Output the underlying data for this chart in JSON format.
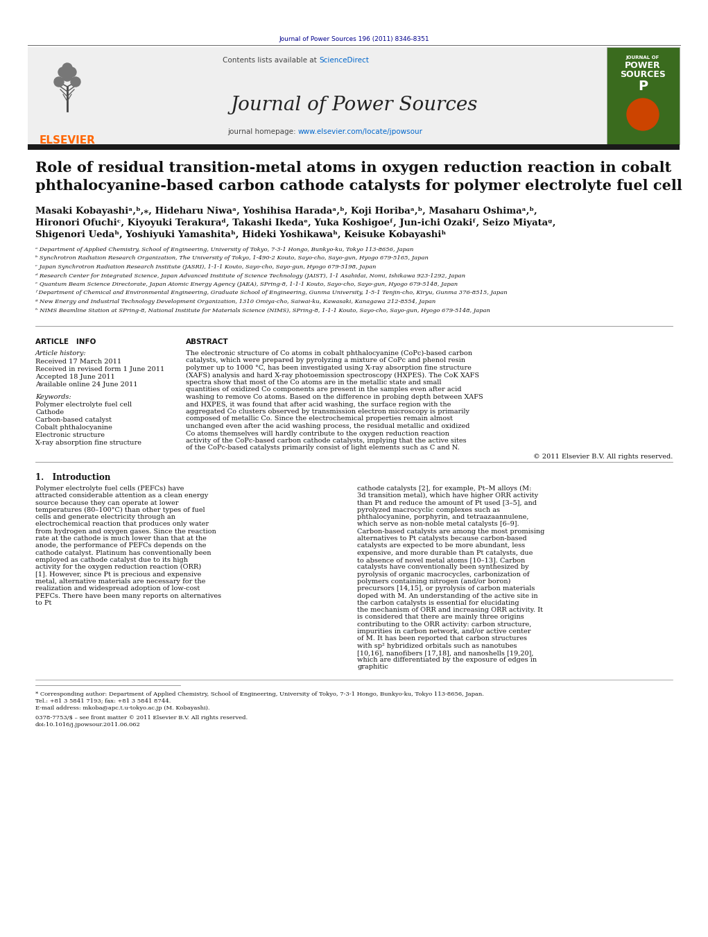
{
  "journal_ref": "Journal of Power Sources 196 (2011) 8346-8351",
  "journal_ref_color": "#00008B",
  "sciencedirect_color": "#0066CC",
  "homepage_url_color": "#0066CC",
  "elsevier_color": "#FF6600",
  "header_bg": "#EFEFEF",
  "dark_bar_color": "#1a1a1a",
  "title": "Role of residual transition-metal atoms in oxygen reduction reaction in cobalt\nphthalocyanine-based carbon cathode catalysts for polymer electrolyte fuel cell",
  "authors_line1": "Masaki Kobayashiᵃ,ᵇ,⁎, Hideharu Niwaᵃ, Yoshihisa Haradaᵃ,ᵇ, Koji Horibaᵃ,ᵇ, Masaharu Oshimaᵃ,ᵇ,",
  "authors_line2": "Hironori Ofuchiᶜ, Kiyoyuki Terakuraᵈ, Takashi Ikedaᵉ, Yuka Koshigoeᶠ, Jun-ichi Ozakiᶠ, Seizo Miyataᵍ,",
  "authors_line3": "Shigenori Uedaʰ, Yoshiyuki Yamashitaʰ, Hideki Yoshikawaʰ, Keisuke Kobayashiʰ",
  "affiliations": [
    "ᵃ Department of Applied Chemistry, School of Engineering, University of Tokyo, 7-3-1 Hongo, Bunkyo-ku, Tokyo 113-8656, Japan",
    "ᵇ Synchrotron Radiation Research Organization, The University of Tokyo, 1-490-2 Kouto, Sayo-cho, Sayo-gun, Hyogo 679-5165, Japan",
    "ᶜ Japan Synchrotron Radiation Research Institute (JASRI), 1-1-1 Kouto, Sayo-cho, Sayo-gun, Hyogo 679-5198, Japan",
    "ᵈ Research Center for Integrated Science, Japan Advanced Institute of Science Technology (JAIST), 1-1 Asahidai, Nomi, Ishikawa 923-1292, Japan",
    "ᵉ Quantum Beam Science Directorate, Japan Atomic Energy Agency (JAEA), SPring-8, 1-1-1 Kouto, Sayo-cho, Sayo-gun, Hyogo 679-5148, Japan",
    "ᶠ Department of Chemical and Environmental Engineering, Graduate School of Engineering, Gunma University, 1-5-1 Tenjin-cho, Kiryu, Gunma 376-8515, Japan",
    "ᵍ New Energy and Industrial Technology Development Organization, 1310 Omiya-cho, Saiwai-ku, Kawasaki, Kanagawa 212-8554, Japan",
    "ʰ NIMS Beamline Station at SPring-8, National Institute for Materials Science (NIMS), SPring-8, 1-1-1 Kouto, Sayo-cho, Sayo-gun, Hyogo 679-5148, Japan"
  ],
  "article_info_label": "ARTICLE   INFO",
  "abstract_label": "ABSTRACT",
  "article_history_label": "Article history:",
  "received_text": "Received 17 March 2011",
  "revised_text": "Received in revised form 1 June 2011",
  "accepted_text": "Accepted 18 June 2011",
  "available_text": "Available online 24 June 2011",
  "keywords_label": "Keywords:",
  "keywords": [
    "Polymer electrolyte fuel cell",
    "Cathode",
    "Carbon-based catalyst",
    "Cobalt phthalocyanine",
    "Electronic structure",
    "X-ray absorption fine structure"
  ],
  "abstract_text": "The electronic structure of Co atoms in cobalt phthalocyanine (CoPc)-based carbon catalysts, which were prepared by pyrolyzing a mixture of CoPc and phenol resin polymer up to 1000 °C, has been investigated using X-ray absorption fine structure (XAFS) analysis and hard X-ray photoemission spectroscopy (HXPES). The CoK XAFS spectra show that most of the Co atoms are in the metallic state and small quantities of oxidized Co components are present in the samples even after acid washing to remove Co atoms. Based on the difference in probing depth between XAFS and HXPES, it was found that after acid washing, the surface region with the aggregated Co clusters observed by transmission electron microscopy is primarily composed of metallic Co. Since the electrochemical properties remain almost unchanged even after the acid washing process, the residual metallic and oxidized Co atoms themselves will hardly contribute to the oxygen reduction reaction activity of the CoPc-based carbon cathode catalysts, implying that the active sites of the CoPc-based catalysts primarily consist of light elements such as C and N.",
  "copyright_text": "© 2011 Elsevier B.V. All rights reserved.",
  "section1_title": "1.   Introduction",
  "intro_col1": "Polymer electrolyte fuel cells (PEFCs) have attracted considerable attention as a clean energy source because they can operate at lower temperatures (80–100°C) than other types of fuel cells and generate electricity through an electrochemical reaction that produces only water from hydrogen and oxygen gases. Since the reaction rate at the cathode is much lower than that at the anode, the performance of PEFCs depends on the cathode catalyst. Platinum has conventionally been employed as cathode catalyst due to its high activity for the oxygen reduction reaction (ORR) [1]. However, since Pt is precious and expensive metal, alternative materials are necessary for the realization and widespread adoption of low-cost PEFCs. There have been many reports on alternatives to Pt",
  "intro_col2": "cathode catalysts [2], for example, Pt–M alloys (M: 3d transition metal), which have higher ORR activity than Pt and reduce the amount of Pt used [3–5], and pyrolyzed macrocyclic complexes such as phthalocyanine, porphyrin, and tetraazaannulene, which serve as non-noble metal catalysts [6–9]. Carbon-based catalysts are among the most promising alternatives to Pt catalysts because carbon-based catalysts are expected to be more abundant, less expensive, and more durable than Pt catalysts, due to absence of novel metal atoms [10–13]. Carbon catalysts have conventionally been synthesized by pyrolysis of organic macrocycles, carbonization of polymers containing nitrogen (and/or boron) precursors [14,15], or pyrolysis of carbon materials doped with M. An understanding of the active site in the carbon catalysts is essential for elucidating the mechanism of ORR and increasing ORR activity. It is considered that there are mainly three origins contributing to the ORR activity: carbon structure, impurities in carbon network, and/or active center of M. It has been reported that carbon structures with sp² hybridized orbitals such as nanotubes [10,16], nanofibers [17,18], and nanoshells [19,20], which are differentiated by the exposure of edges in graphitic",
  "footnote1": "* Corresponding author: Department of Applied Chemistry, School of Engineering, University of Tokyo, 7-3-1 Hongo, Bunkyo-ku, Tokyo 113-8656, Japan.",
  "footnote1b": "Tel.: +81 3 5841 7193; fax: +81 3 5841 8744.",
  "footnote2": "E-mail address: mkoba@apc.t.u-tokyo.ac.jp (M. Kobayashi).",
  "issn_text": "0378-7753/$ – see front matter © 2011 Elsevier B.V. All rights reserved.",
  "doi_text": "doi:10.1016/j.jpowsour.2011.06.062",
  "bg_color": "#FFFFFF",
  "text_color": "#000000"
}
